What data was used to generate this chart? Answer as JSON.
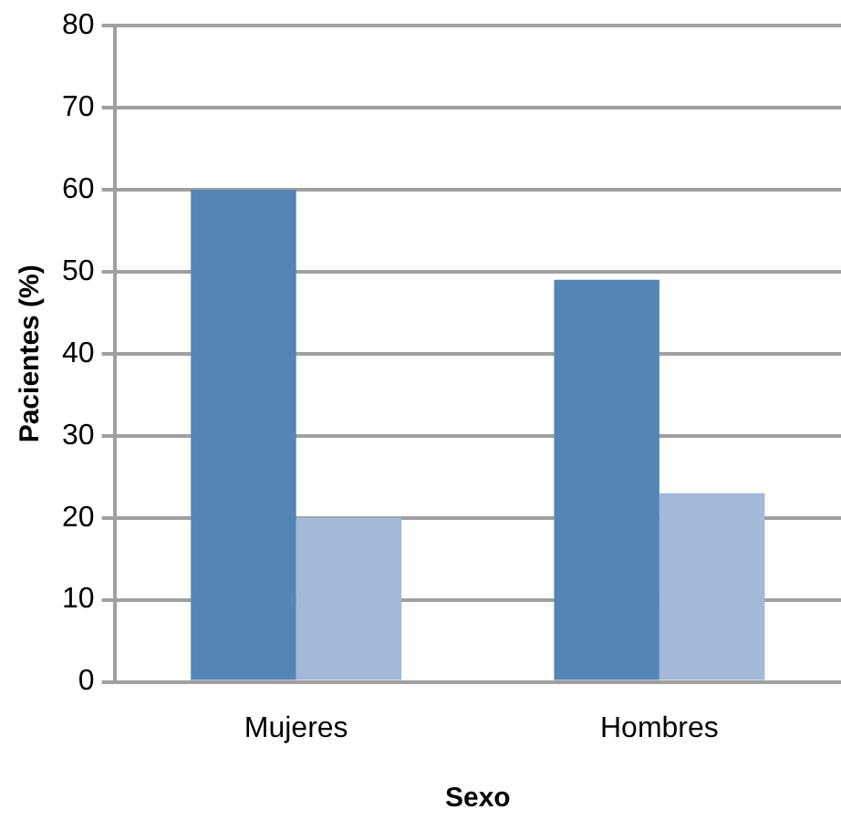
{
  "chart_data": {
    "type": "bar",
    "xlabel": "Sexo",
    "ylabel": "Pacientes (%)",
    "categories": [
      "Mujeres",
      "Hombres"
    ],
    "series": [
      {
        "color": "#5585b5",
        "values": [
          60,
          49
        ]
      },
      {
        "color": "#a4b8d8",
        "values": [
          20,
          23
        ]
      }
    ],
    "ylim": [
      0,
      80
    ],
    "yticks": [
      0,
      10,
      20,
      30,
      40,
      50,
      60,
      70,
      80
    ],
    "grid": "y",
    "legend": false
  }
}
